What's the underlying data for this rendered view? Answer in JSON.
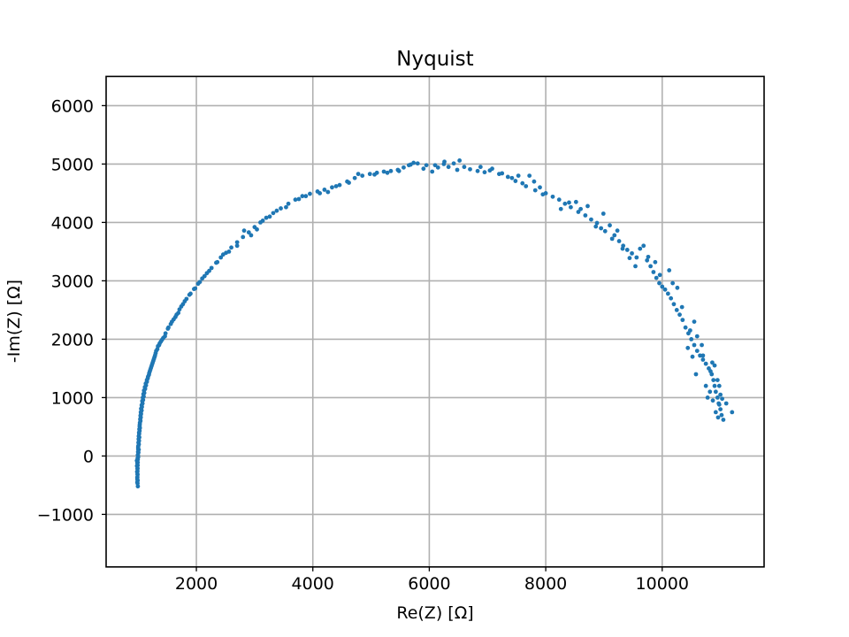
{
  "chart_data": {
    "type": "scatter",
    "title": "Nyquist",
    "xlabel": "Re(Z) [Ω]",
    "ylabel": "-Im(Z) [Ω]",
    "xlim": [
      450,
      11750
    ],
    "ylim": [
      -1900,
      6500
    ],
    "xticks": [
      2000,
      4000,
      6000,
      8000,
      10000
    ],
    "xtick_labels": [
      "2000",
      "4000",
      "6000",
      "8000",
      "10000"
    ],
    "yticks": [
      -1000,
      0,
      1000,
      2000,
      3000,
      4000,
      5000,
      6000
    ],
    "ytick_labels": [
      "−1000",
      "0",
      "1000",
      "2000",
      "3000",
      "4000",
      "5000",
      "6000"
    ],
    "grid": true,
    "marker_color": "#1f77b4",
    "points": [
      [
        995,
        -520
      ],
      [
        990,
        -470
      ],
      [
        992,
        -420
      ],
      [
        985,
        -370
      ],
      [
        990,
        -320
      ],
      [
        982,
        -270
      ],
      [
        988,
        -220
      ],
      [
        980,
        -170
      ],
      [
        985,
        -120
      ],
      [
        978,
        -80
      ],
      [
        990,
        -40
      ],
      [
        1000,
        -20
      ],
      [
        995,
        20
      ],
      [
        1005,
        60
      ],
      [
        1010,
        110
      ],
      [
        1000,
        150
      ],
      [
        1012,
        200
      ],
      [
        1015,
        260
      ],
      [
        1020,
        320
      ],
      [
        1018,
        380
      ],
      [
        1025,
        430
      ],
      [
        1030,
        480
      ],
      [
        1028,
        540
      ],
      [
        1040,
        600
      ],
      [
        1045,
        660
      ],
      [
        1050,
        720
      ],
      [
        1060,
        780
      ],
      [
        1065,
        840
      ],
      [
        1075,
        900
      ],
      [
        1085,
        960
      ],
      [
        1095,
        1020
      ],
      [
        1105,
        1080
      ],
      [
        1120,
        1150
      ],
      [
        1135,
        1210
      ],
      [
        1150,
        1270
      ],
      [
        1165,
        1330
      ],
      [
        1185,
        1390
      ],
      [
        1200,
        1450
      ],
      [
        1220,
        1510
      ],
      [
        1240,
        1570
      ],
      [
        1260,
        1630
      ],
      [
        1280,
        1690
      ],
      [
        1300,
        1760
      ],
      [
        1330,
        1830
      ],
      [
        1360,
        1900
      ],
      [
        1390,
        1960
      ],
      [
        1430,
        2020
      ],
      [
        1470,
        2100
      ],
      [
        1510,
        2180
      ],
      [
        1560,
        2260
      ],
      [
        1610,
        2340
      ],
      [
        1660,
        2420
      ],
      [
        1710,
        2510
      ],
      [
        1770,
        2600
      ],
      [
        1830,
        2690
      ],
      [
        1900,
        2780
      ],
      [
        1960,
        2860
      ],
      [
        2030,
        2950
      ],
      [
        2100,
        3040
      ],
      [
        2180,
        3130
      ],
      [
        2260,
        3220
      ],
      [
        2340,
        3310
      ],
      [
        2420,
        3400
      ],
      [
        2510,
        3480
      ],
      [
        2600,
        3570
      ],
      [
        2700,
        3660
      ],
      [
        2800,
        3750
      ],
      [
        2900,
        3830
      ],
      [
        3000,
        3920
      ],
      [
        3100,
        4000
      ],
      [
        3200,
        4080
      ],
      [
        3320,
        4160
      ],
      [
        3450,
        4240
      ],
      [
        3580,
        4320
      ],
      [
        3700,
        4390
      ],
      [
        3820,
        4450
      ],
      [
        3950,
        4490
      ],
      [
        4080,
        4530
      ],
      [
        4200,
        4560
      ],
      [
        4330,
        4600
      ],
      [
        4460,
        4640
      ],
      [
        4590,
        4700
      ],
      [
        4720,
        4760
      ],
      [
        4850,
        4800
      ],
      [
        4980,
        4830
      ],
      [
        5100,
        4850
      ],
      [
        5220,
        4870
      ],
      [
        5340,
        4880
      ],
      [
        5460,
        4900
      ],
      [
        5560,
        4940
      ],
      [
        5650,
        4980
      ],
      [
        5730,
        5020
      ],
      [
        5800,
        5010
      ],
      [
        5900,
        4920
      ],
      [
        6050,
        4870
      ],
      [
        6150,
        4940
      ],
      [
        6250,
        5000
      ],
      [
        6330,
        4950
      ],
      [
        6420,
        5010
      ],
      [
        6520,
        5060
      ],
      [
        6600,
        4950
      ],
      [
        6700,
        4910
      ],
      [
        6830,
        4880
      ],
      [
        6950,
        4860
      ],
      [
        7080,
        4920
      ],
      [
        7200,
        4830
      ],
      [
        7350,
        4780
      ],
      [
        7480,
        4710
      ],
      [
        7600,
        4670
      ],
      [
        7720,
        4800
      ],
      [
        7800,
        4700
      ],
      [
        7900,
        4600
      ],
      [
        8000,
        4500
      ],
      [
        8120,
        4440
      ],
      [
        8230,
        4390
      ],
      [
        8330,
        4320
      ],
      [
        8430,
        4260
      ],
      [
        8560,
        4180
      ],
      [
        8680,
        4120
      ],
      [
        8780,
        4050
      ],
      [
        8880,
        3990
      ],
      [
        8950,
        3900
      ],
      [
        9020,
        3850
      ],
      [
        9100,
        3950
      ],
      [
        9180,
        3780
      ],
      [
        9260,
        3680
      ],
      [
        9330,
        3600
      ],
      [
        9400,
        3530
      ],
      [
        9480,
        3470
      ],
      [
        9560,
        3400
      ],
      [
        9620,
        3550
      ],
      [
        9680,
        3600
      ],
      [
        9740,
        3350
      ],
      [
        9800,
        3250
      ],
      [
        9850,
        3150
      ],
      [
        9900,
        3050
      ],
      [
        9950,
        2960
      ],
      [
        10000,
        2900
      ],
      [
        10050,
        2850
      ],
      [
        10100,
        2780
      ],
      [
        10150,
        2700
      ],
      [
        10200,
        2600
      ],
      [
        10250,
        2500
      ],
      [
        10300,
        2420
      ],
      [
        10350,
        2330
      ],
      [
        10400,
        2200
      ],
      [
        10450,
        2100
      ],
      [
        10500,
        2000
      ],
      [
        10550,
        1900
      ],
      [
        10600,
        1800
      ],
      [
        10650,
        1720
      ],
      [
        10700,
        1650
      ],
      [
        10750,
        1580
      ],
      [
        10800,
        1500
      ],
      [
        10850,
        1400
      ],
      [
        10880,
        1300
      ],
      [
        10900,
        1200
      ],
      [
        10920,
        1100
      ],
      [
        10950,
        1000
      ],
      [
        10970,
        900
      ],
      [
        11000,
        800
      ],
      [
        11020,
        700
      ],
      [
        11050,
        620
      ],
      [
        11100,
        900
      ],
      [
        11200,
        750
      ],
      [
        10550,
        2300
      ],
      [
        10600,
        2050
      ],
      [
        10520,
        1700
      ],
      [
        10580,
        1400
      ],
      [
        10750,
        1200
      ],
      [
        10820,
        1100
      ],
      [
        10860,
        1600
      ],
      [
        10900,
        1550
      ],
      [
        10950,
        1300
      ],
      [
        10980,
        1200
      ],
      [
        11000,
        1050
      ],
      [
        10870,
        950
      ],
      [
        10920,
        750
      ],
      [
        10980,
        880
      ],
      [
        11030,
        980
      ],
      [
        10960,
        660
      ],
      [
        10780,
        1000
      ],
      [
        10700,
        1720
      ],
      [
        10830,
        1450
      ],
      [
        10680,
        1900
      ],
      [
        10440,
        1850
      ],
      [
        10480,
        2150
      ],
      [
        10340,
        2550
      ],
      [
        10260,
        2880
      ],
      [
        10180,
        2960
      ],
      [
        10120,
        3180
      ],
      [
        9960,
        3100
      ],
      [
        9880,
        3320
      ],
      [
        9760,
        3410
      ],
      [
        9540,
        3250
      ],
      [
        9440,
        3390
      ],
      [
        9320,
        3550
      ],
      [
        9230,
        3860
      ],
      [
        9140,
        3720
      ],
      [
        8990,
        4150
      ],
      [
        8860,
        3930
      ],
      [
        8720,
        4280
      ],
      [
        8600,
        4230
      ],
      [
        8520,
        4350
      ],
      [
        8400,
        4340
      ],
      [
        8260,
        4230
      ],
      [
        7950,
        4480
      ],
      [
        7820,
        4550
      ],
      [
        7660,
        4620
      ],
      [
        7530,
        4800
      ],
      [
        7420,
        4760
      ],
      [
        7250,
        4840
      ],
      [
        7040,
        4890
      ],
      [
        6880,
        4950
      ],
      [
        6480,
        4900
      ],
      [
        6260,
        5040
      ],
      [
        6100,
        4980
      ],
      [
        5950,
        4980
      ],
      [
        5680,
        4990
      ],
      [
        5480,
        4880
      ],
      [
        5280,
        4850
      ],
      [
        5060,
        4820
      ],
      [
        4780,
        4830
      ],
      [
        4620,
        4680
      ],
      [
        4400,
        4620
      ],
      [
        4260,
        4520
      ],
      [
        4120,
        4500
      ],
      [
        3880,
        4450
      ],
      [
        3760,
        4400
      ],
      [
        3540,
        4260
      ],
      [
        3380,
        4200
      ],
      [
        3260,
        4100
      ],
      [
        3140,
        4030
      ],
      [
        3040,
        3880
      ],
      [
        2940,
        3780
      ],
      [
        2820,
        3860
      ],
      [
        2700,
        3600
      ],
      [
        2560,
        3500
      ],
      [
        2460,
        3450
      ],
      [
        2360,
        3320
      ],
      [
        2220,
        3170
      ],
      [
        2140,
        3080
      ],
      [
        2060,
        2980
      ],
      [
        1980,
        2870
      ],
      [
        1880,
        2760
      ],
      [
        1800,
        2650
      ],
      [
        1740,
        2560
      ],
      [
        1690,
        2450
      ],
      [
        1640,
        2380
      ],
      [
        1580,
        2300
      ],
      [
        1520,
        2200
      ],
      [
        1460,
        2050
      ],
      [
        1410,
        1990
      ],
      [
        1370,
        1930
      ],
      [
        1340,
        1880
      ],
      [
        1310,
        1800
      ],
      [
        1290,
        1720
      ],
      [
        1270,
        1660
      ],
      [
        1250,
        1600
      ],
      [
        1230,
        1540
      ],
      [
        1210,
        1480
      ],
      [
        1190,
        1420
      ],
      [
        1170,
        1360
      ],
      [
        1150,
        1300
      ],
      [
        1130,
        1240
      ],
      [
        1115,
        1180
      ],
      [
        1100,
        1120
      ],
      [
        1090,
        1060
      ],
      [
        1080,
        1000
      ],
      [
        1070,
        940
      ],
      [
        1060,
        870
      ],
      [
        1050,
        810
      ],
      [
        1045,
        750
      ],
      [
        1040,
        690
      ],
      [
        1035,
        630
      ],
      [
        1030,
        570
      ],
      [
        1025,
        510
      ],
      [
        1020,
        460
      ],
      [
        1015,
        400
      ],
      [
        1010,
        340
      ],
      [
        1008,
        290
      ],
      [
        1005,
        230
      ],
      [
        1002,
        170
      ],
      [
        1000,
        120
      ],
      [
        998,
        70
      ],
      [
        996,
        10
      ],
      [
        994,
        -60
      ],
      [
        993,
        -110
      ],
      [
        992,
        -160
      ],
      [
        990,
        -210
      ],
      [
        989,
        -260
      ],
      [
        988,
        -310
      ],
      [
        987,
        -360
      ],
      [
        986,
        -400
      ],
      [
        985,
        -450
      ]
    ]
  }
}
